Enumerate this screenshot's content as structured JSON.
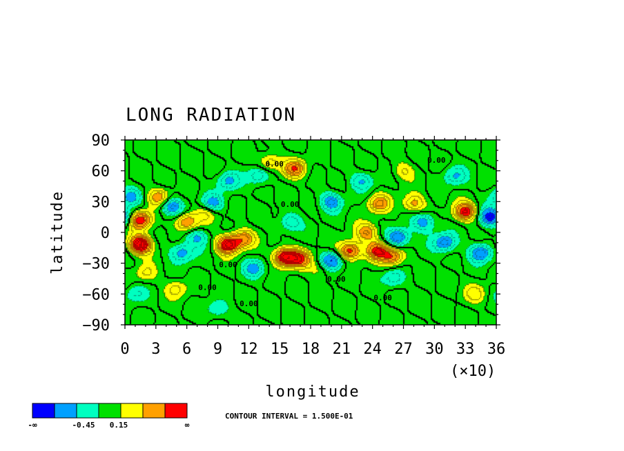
{
  "chart_data": {
    "type": "heatmap",
    "title": "LONG RADIATION",
    "xlabel": "longitude",
    "ylabel": "latitude",
    "x_multiplier": "(×10)",
    "xlim": [
      0,
      36
    ],
    "ylim": [
      -90,
      90
    ],
    "x_ticks": [
      "0",
      "3",
      "6",
      "9",
      "12",
      "15",
      "18",
      "21",
      "24",
      "27",
      "30",
      "33",
      "36"
    ],
    "y_ticks": [
      "90",
      "60",
      "30",
      "0",
      "−30",
      "−60",
      "−90"
    ],
    "contour_interval_text": "CONTOUR INTERVAL = 1.500E-01",
    "contour_interval": 0.15,
    "contour_labels": [
      "0.00",
      "0.00",
      "0.00",
      "0.00",
      "0.00",
      "0.00",
      "0.00",
      "0.00"
    ],
    "colorbar": {
      "colors": [
        "#0000ff",
        "#00a0ff",
        "#00ffc0",
        "#00e000",
        "#ffff00",
        "#ffa000",
        "#ff0000"
      ],
      "labels": [
        "-∞",
        "-0.45",
        "0.15",
        "∞"
      ]
    },
    "features": [
      {
        "lon": 1.5,
        "lat": 12,
        "value": 0.9
      },
      {
        "lon": 1.5,
        "lat": -12,
        "value": 1.2
      },
      {
        "lon": 3.3,
        "lat": 34,
        "value": 0.6
      },
      {
        "lon": 6.0,
        "lat": 10,
        "value": 0.7
      },
      {
        "lon": 10.0,
        "lat": -12,
        "value": 1.1
      },
      {
        "lon": 11.5,
        "lat": -6,
        "value": 0.6
      },
      {
        "lon": 15.5,
        "lat": -24,
        "value": 1.1
      },
      {
        "lon": 17.0,
        "lat": -26,
        "value": 0.7
      },
      {
        "lon": 16.5,
        "lat": 62,
        "value": 0.7
      },
      {
        "lon": 14.0,
        "lat": 68,
        "value": 0.45
      },
      {
        "lon": 21.8,
        "lat": -18,
        "value": 0.9
      },
      {
        "lon": 23.5,
        "lat": 0,
        "value": 0.6
      },
      {
        "lon": 24.5,
        "lat": -18,
        "value": 0.8
      },
      {
        "lon": 26.0,
        "lat": -24,
        "value": 0.7
      },
      {
        "lon": 24.6,
        "lat": 28,
        "value": 0.6
      },
      {
        "lon": 28.0,
        "lat": 28,
        "value": 0.55
      },
      {
        "lon": 33.0,
        "lat": 20,
        "value": 0.9
      },
      {
        "lon": 34.0,
        "lat": -60,
        "value": 0.35
      },
      {
        "lon": 5.0,
        "lat": -55,
        "value": 0.35
      },
      {
        "lon": 2.0,
        "lat": -40,
        "value": 0.3
      },
      {
        "lon": 19.0,
        "lat": -35,
        "value": 0.3
      },
      {
        "lon": 27.0,
        "lat": 60,
        "value": 0.3
      },
      {
        "lon": 8.0,
        "lat": 20,
        "value": 0.4
      },
      {
        "lon": 4.5,
        "lat": 25,
        "value": -0.7
      },
      {
        "lon": 8.5,
        "lat": 28,
        "value": -0.6
      },
      {
        "lon": 10.0,
        "lat": 50,
        "value": -0.5
      },
      {
        "lon": 13.0,
        "lat": 55,
        "value": -0.45
      },
      {
        "lon": 5.5,
        "lat": -20,
        "value": -0.6
      },
      {
        "lon": 12.5,
        "lat": -35,
        "value": -0.5
      },
      {
        "lon": 20.0,
        "lat": -28,
        "value": -0.8
      },
      {
        "lon": 20.0,
        "lat": 30,
        "value": -0.6
      },
      {
        "lon": 26.5,
        "lat": -5,
        "value": -0.8
      },
      {
        "lon": 29.0,
        "lat": 10,
        "value": -0.6
      },
      {
        "lon": 31.0,
        "lat": -10,
        "value": -0.7
      },
      {
        "lon": 34.5,
        "lat": -20,
        "value": -0.7
      },
      {
        "lon": 35.5,
        "lat": 15,
        "value": -0.9
      },
      {
        "lon": 16.0,
        "lat": 10,
        "value": -0.45
      },
      {
        "lon": 23.0,
        "lat": 50,
        "value": -0.45
      },
      {
        "lon": 32.0,
        "lat": 55,
        "value": -0.45
      },
      {
        "lon": 0.5,
        "lat": 35,
        "value": -0.5
      },
      {
        "lon": 7.0,
        "lat": -5,
        "value": -0.5
      },
      {
        "lon": 26.0,
        "lat": -45,
        "value": -0.4
      },
      {
        "lon": 9.0,
        "lat": -75,
        "value": -0.35
      },
      {
        "lon": 1.0,
        "lat": -60,
        "value": -0.3
      }
    ]
  }
}
